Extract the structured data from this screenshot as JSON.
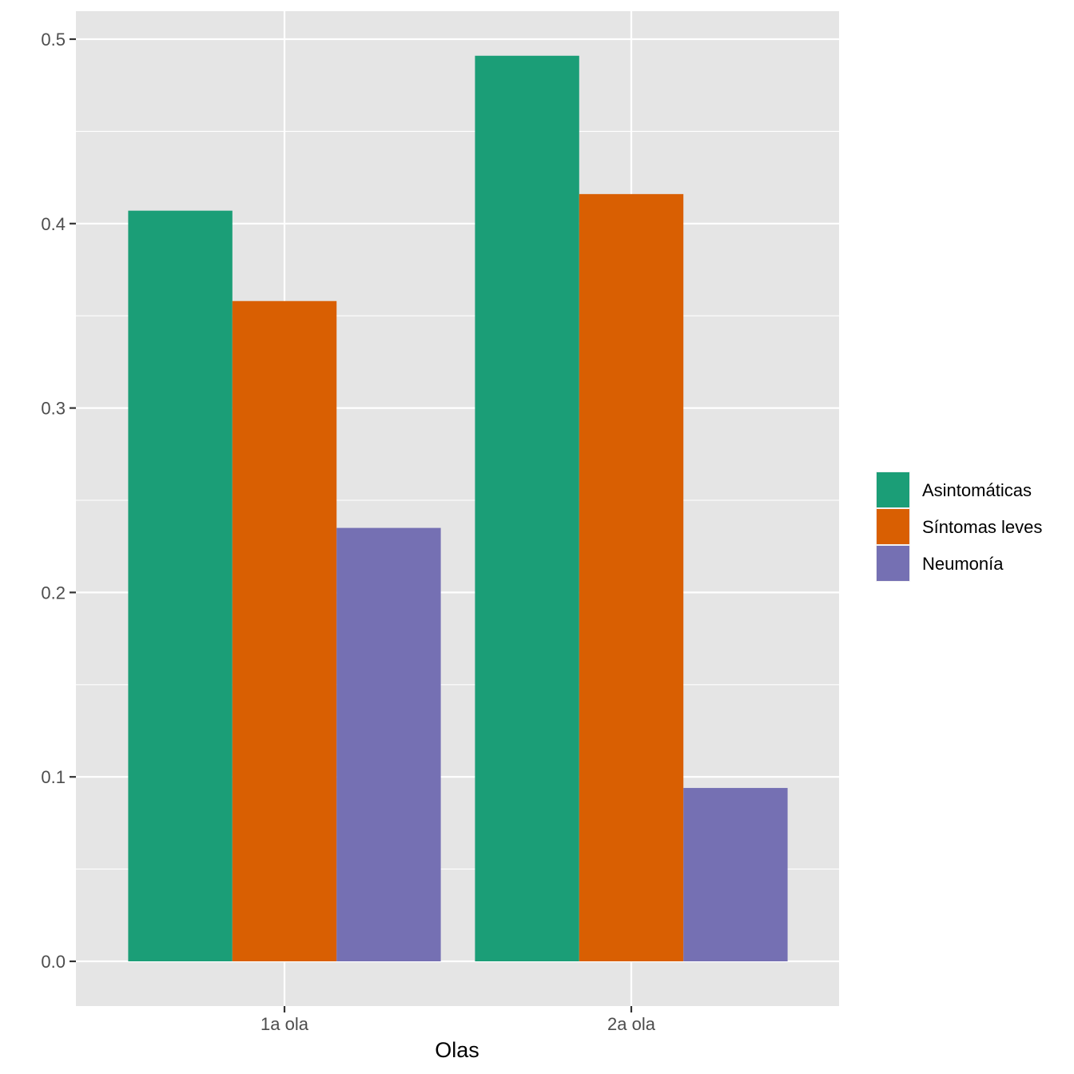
{
  "chart_data": {
    "type": "bar",
    "title": "",
    "xlabel": "Olas",
    "ylabel": "",
    "categories": [
      "1a ola",
      "2a ola"
    ],
    "series": [
      {
        "name": "Asintomáticas",
        "color": "#1B9E77",
        "values": [
          0.407,
          0.491
        ]
      },
      {
        "name": "Síntomas leves",
        "color": "#D95F02",
        "values": [
          0.358,
          0.416
        ]
      },
      {
        "name": "Neumonía",
        "color": "#7570B3",
        "values": [
          0.235,
          0.094
        ]
      }
    ],
    "ylim": [
      -0.024,
      0.515
    ],
    "yticks": [
      0.0,
      0.1,
      0.2,
      0.3,
      0.4,
      0.5
    ],
    "ytick_labels": [
      "0.0",
      "0.1",
      "0.2",
      "0.3",
      "0.4",
      "0.5"
    ],
    "grid": true,
    "legend_position": "right",
    "panel_background": "#E5E5E5",
    "grid_color": "#FFFFFF"
  }
}
